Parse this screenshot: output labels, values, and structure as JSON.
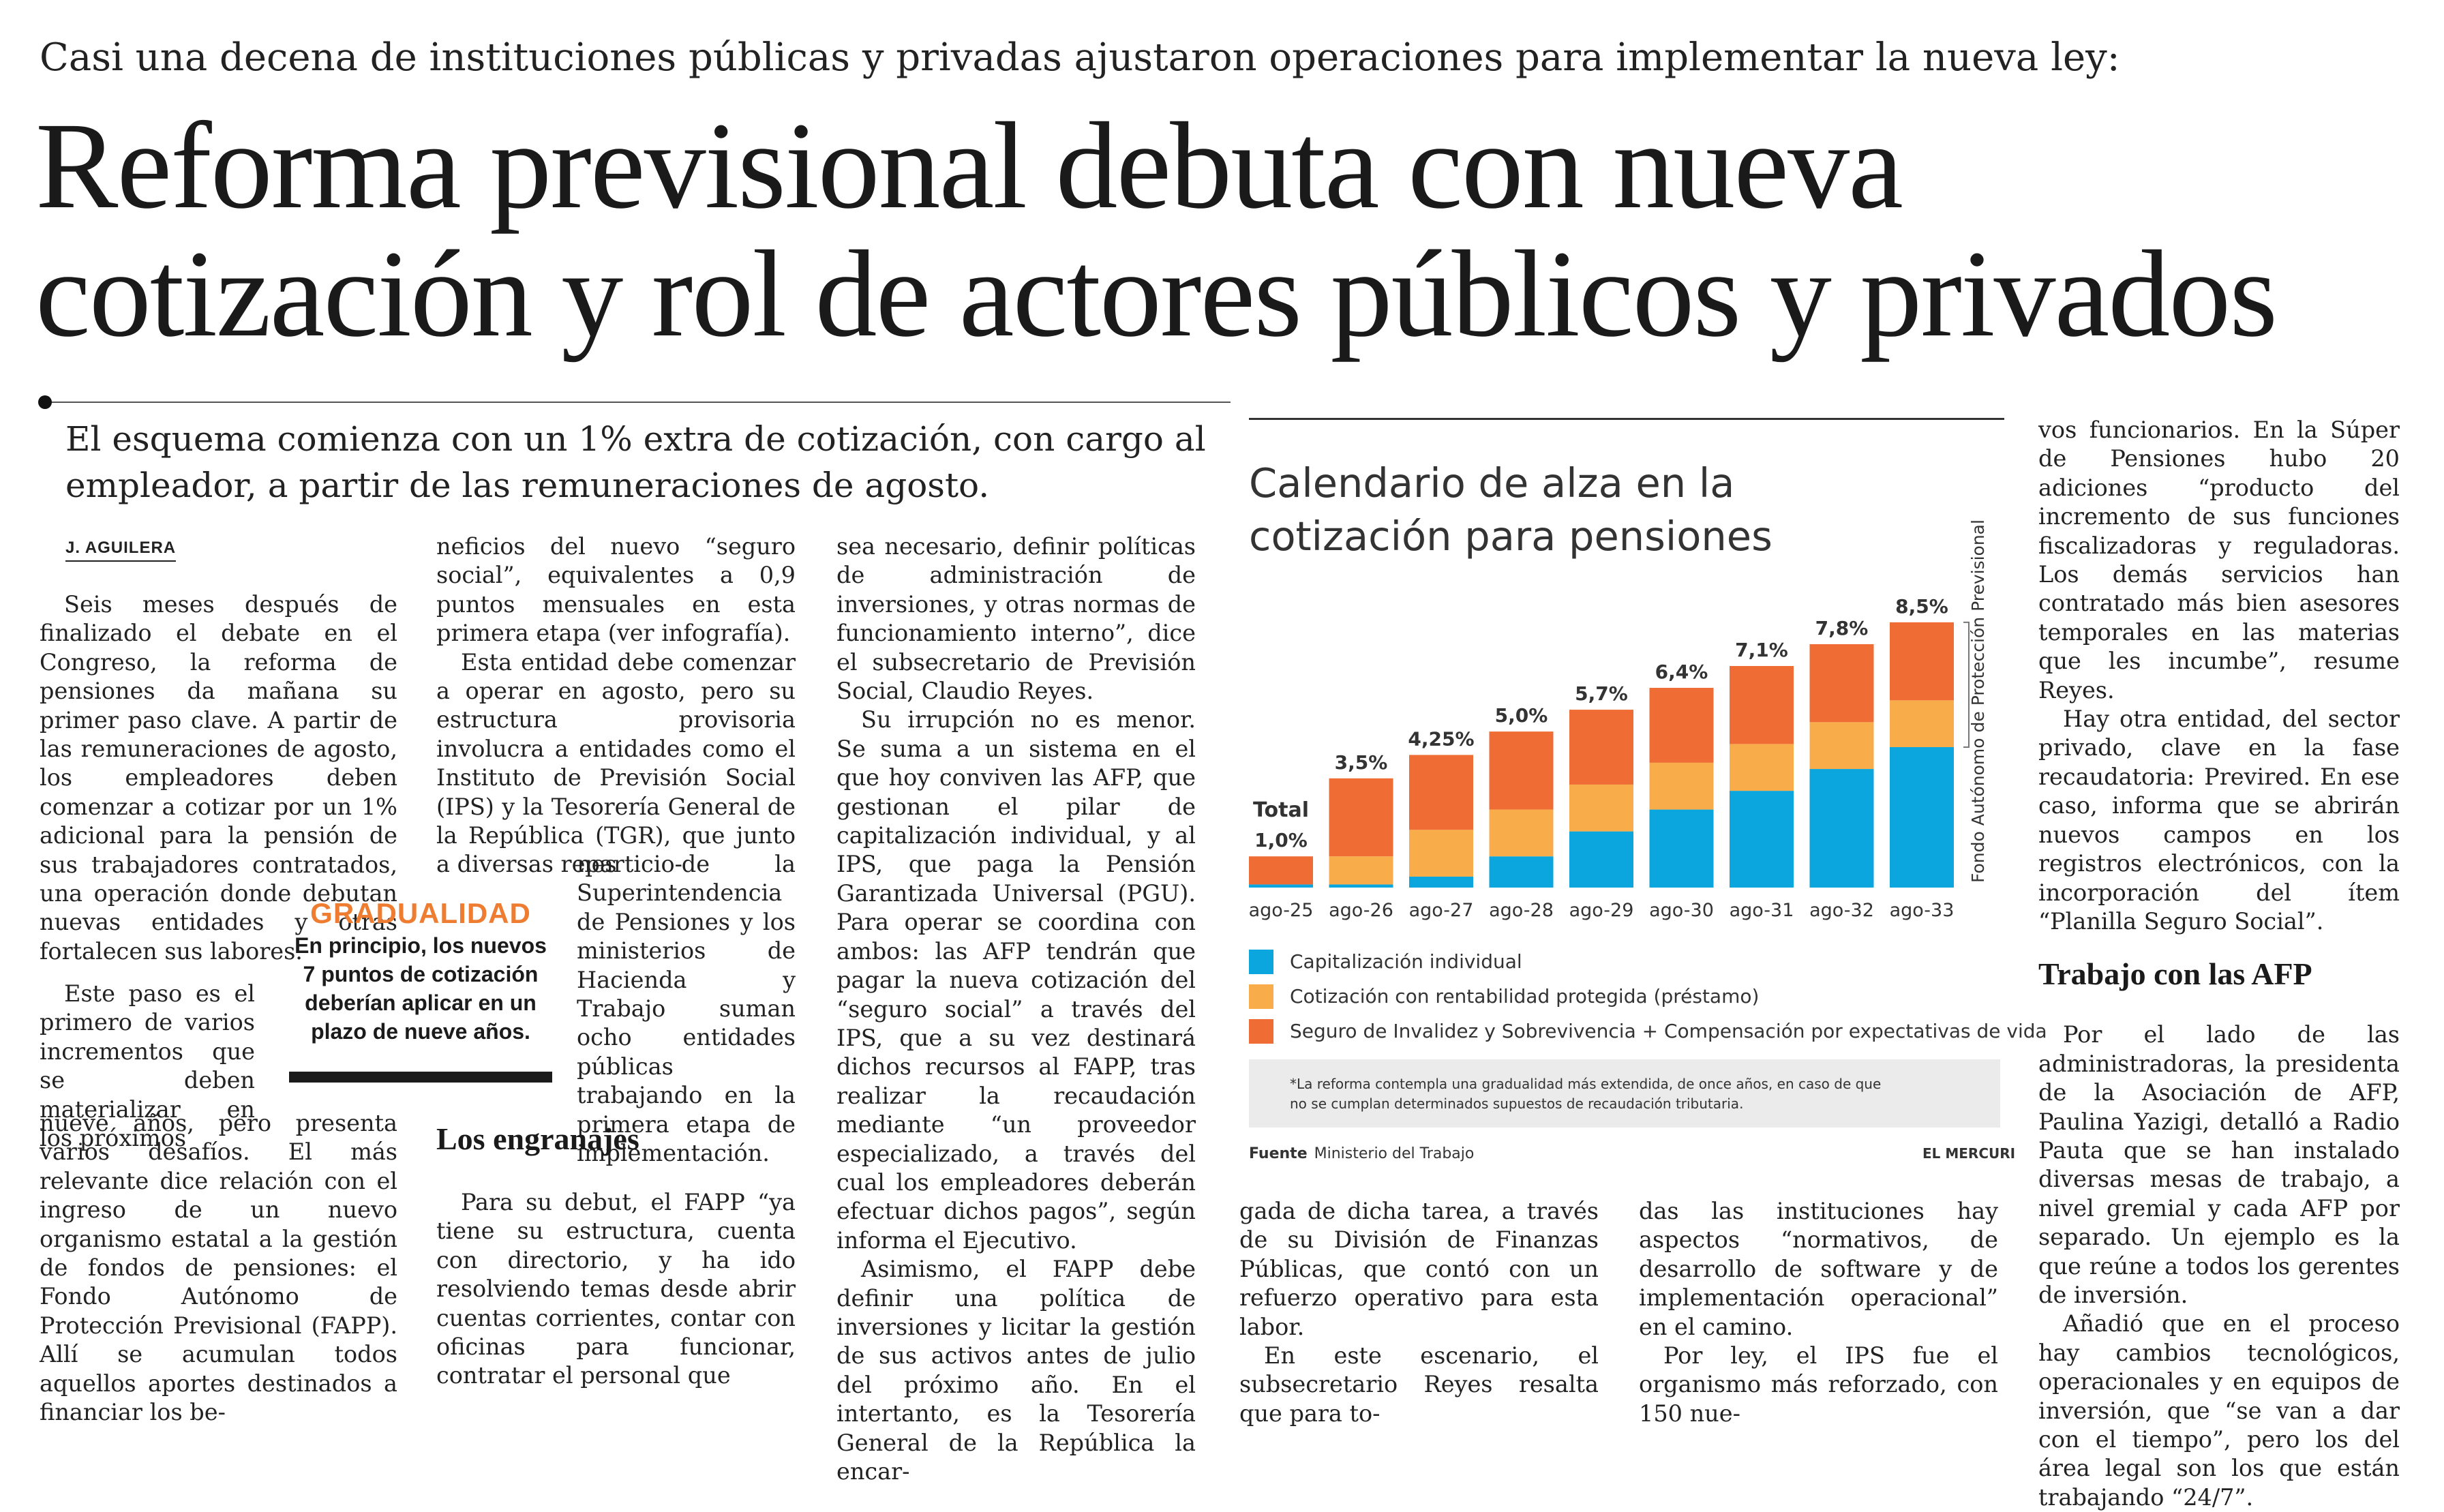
{
  "kicker": "Casi una decena de instituciones públicas y privadas ajustaron operaciones para implementar la nueva ley:",
  "headline": {
    "line1": "Reforma previsional debuta con nueva",
    "line2": "cotización y rol de actores públicos y privados"
  },
  "lead": "El esquema comienza con un 1% extra de cotización, con cargo al empleador, a partir de las remuneraciones de agosto.",
  "byline": "J. AGUILERA",
  "article": {
    "col1a": "Seis meses después de finalizado el debate en el Congreso, la reforma de pensiones da mañana su primer paso clave. A partir de las remuneraciones de agosto, los empleadores deben comenzar a cotizar por un 1% adicional para la pensión de sus trabajadores contratados, una operación donde debutan nuevas entidades y otras fortalecen sus labores.",
    "col1b": "Este paso es el primero de varios incrementos que se deben materializar en los próximos",
    "col1c": "nueve años, pero presenta varios desafíos. El más relevante dice relación con el ingreso de un nuevo organismo estatal a la gestión de fondos de pensiones: el Fondo Autónomo de Protección Previsional (FAPP). Allí se acumulan todos aquellos aportes destinados a financiar los be-",
    "col2a_p1": "neficios del nuevo “seguro social”, equivalentes a 0,9 puntos mensuales en esta primera etapa (ver infografía).",
    "col2a_p2": "Esta entidad debe comenzar a operar en agosto, pero su estructura provisoria involucra a entidades como el Instituto de Previsión Social (IPS) y la Tesorería General de la República (TGR), que junto a diversas reparticio-",
    "col2b": "nes de la Superintendencia de Pensiones y los ministerios de Hacienda y Trabajo suman ocho entidades públicas trabajando en la primera etapa de implementación.",
    "col2c_heading": "Los engranajes",
    "col2c_p1": "Para su debut, el FAPP “ya tiene su estructura, cuenta con directorio, y ha ido resolviendo temas desde abrir cuentas corrientes, contar con oficinas para funcionar, contratar el personal que",
    "col3_p1": "sea necesario, definir políticas de administración de inversiones, y otras normas de funcionamiento interno”, dice el subsecretario de Previsión Social, Claudio Reyes.",
    "col3_p2": "Su irrupción no es menor. Se suma a un sistema en el que hoy conviven las AFP, que gestionan el pilar de capitalización individual, y al IPS, que paga la Pensión Garantizada Universal (PGU). Para operar se coordina con ambos: las AFP tendrán que pagar la nueva cotización del “seguro social” a través del IPS, que a su vez destinará dichos recursos al FAPP, tras realizar la recaudación mediante “un proveedor especializado, a través del cual los empleadores deberán efectuar dichos pagos”, según informa el Ejecutivo.",
    "col3_p3": "Asimismo, el FAPP debe definir una política de inversiones y licitar la gestión de sus activos antes de julio del próximo año. En el intertanto, es la Tesorería General de la República la encar-",
    "col4_p1": "gada de dicha tarea, a través de su División de Finanzas Públicas, que contó con un refuerzo operativo para esta labor.",
    "col4_p2": "En este escenario, el subsecretario Reyes resalta que para to-",
    "col5_p1": "das las instituciones hay aspectos “normativos, de desarrollo de software y de implementación operacional” en el camino.",
    "col5_p2": "Por ley, el IPS fue el organismo más reforzado, con 150 nue-",
    "col6_p1": "vos funcionarios. En la Súper de Pensiones hubo 20 adiciones “producto del incremento de sus funciones fiscalizadoras y reguladoras. Los demás servicios han contratado más bien asesores temporales en las materias que les incumbe”, resume Reyes.",
    "col6_p2": "Hay otra entidad, del sector privado, clave en la fase recaudatoria: Previred. En ese caso, informa que se abrirán nuevos campos en los registros electrónicos, con la incorporación del ítem “Planilla Seguro Social”.",
    "col6_heading": "Trabajo con las AFP",
    "col6_p3": "Por el lado de las administradoras, la presidenta de la Asociación de AFP, Paulina Yazigi, detalló a Radio Pauta que se han instalado diversas mesas de trabajo, a nivel gremial y cada AFP por separado. Un ejemplo es la que reúne a todos los gerentes de inversión.",
    "col6_p4": "Añadió que en el proceso hay cambios tecnológicos, operacionales y en equipos de inversión, que “se van a dar con el tiempo”, pero los del área legal son los que están trabajando “24/7”."
  },
  "pullquote": {
    "title": "GRADUALIDAD",
    "text": "En principio, los nuevos 7 puntos de cotización deberían aplicar en un plazo de nueve años."
  },
  "infographic": {
    "title_line1": "Calendario de alza en la",
    "title_line2": "cotización para pensiones",
    "vertical_label": "Fondo Autónomo de Protección Previsional",
    "footnote_line1": "*La reforma contempla una gradualidad más extendida, de once años, en caso de que",
    "footnote_line2": "no se cumplan determinados supuestos de recaudación tributaria.",
    "source_label": "Fuente",
    "source_value": "Ministerio del Trabajo",
    "credit": "EL MERCURI"
  },
  "chart_data": {
    "type": "bar",
    "stacked": true,
    "title": "Calendario de alza en la cotización para pensiones",
    "categories": [
      "ago-25",
      "ago-26",
      "ago-27",
      "ago-28",
      "ago-29",
      "ago-30",
      "ago-31",
      "ago-32",
      "ago-33"
    ],
    "total_labels": [
      "1,0%",
      "3,5%",
      "4,25%",
      "5,0%",
      "5,7%",
      "6,4%",
      "7,1%",
      "7,8%",
      "8,5%"
    ],
    "first_label_prefix": "Total",
    "totals": [
      1.0,
      3.5,
      4.25,
      5.0,
      5.7,
      6.4,
      7.1,
      7.8,
      8.5
    ],
    "ylim": [
      0,
      9
    ],
    "legend_position": "bottom",
    "series": [
      {
        "name": "Capitalización individual",
        "color": "#0aa6dd",
        "values": [
          0.1,
          0.1,
          0.35,
          1.0,
          1.8,
          2.5,
          3.1,
          3.8,
          4.5
        ]
      },
      {
        "name": "Cotización con rentabilidad protegida (préstamo)",
        "color": "#f9ad4a",
        "values": [
          0.0,
          0.9,
          1.5,
          1.5,
          1.5,
          1.5,
          1.5,
          1.5,
          1.5
        ]
      },
      {
        "name": "Seguro de Invalidez y Sobrevivencia + Compensación por expectativas de vida",
        "color": "#ef6d34",
        "values": [
          0.9,
          2.5,
          2.4,
          2.5,
          2.4,
          2.4,
          2.5,
          2.5,
          2.5
        ]
      }
    ]
  }
}
